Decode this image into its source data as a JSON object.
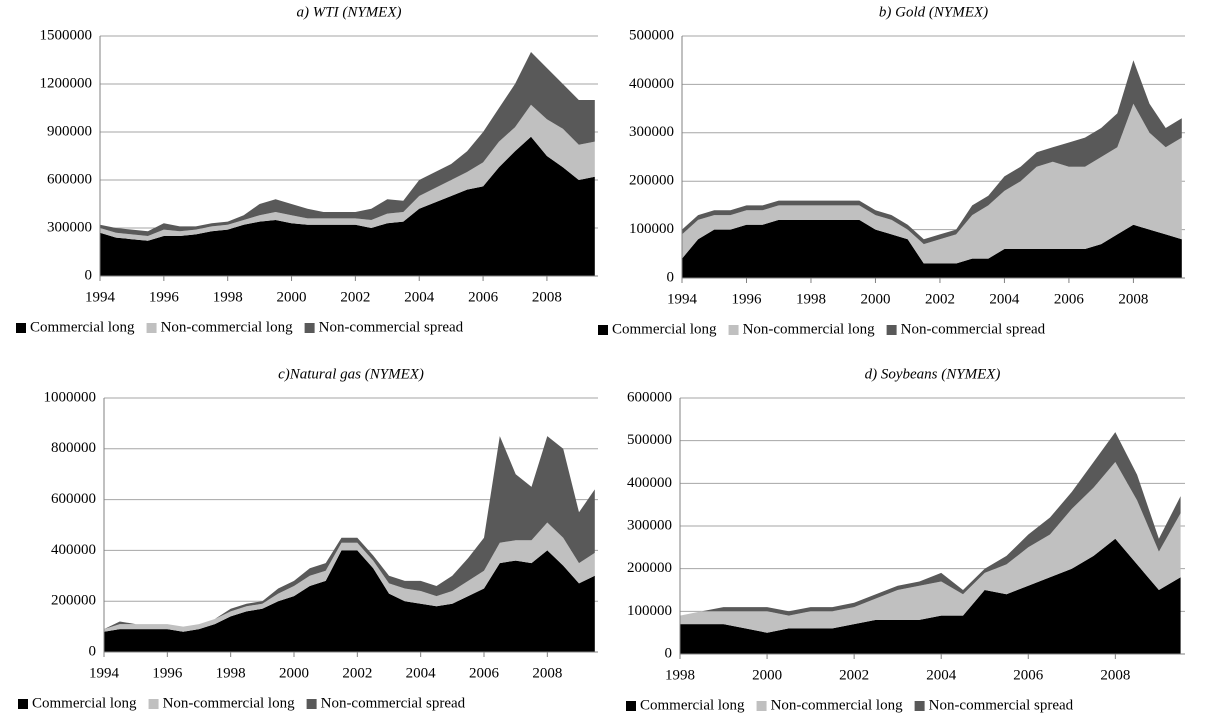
{
  "chart_data": [
    {
      "type": "area",
      "title": "a) WTI (NYMEX)",
      "x": [
        1994,
        1994.5,
        1995,
        1995.5,
        1996,
        1996.5,
        1997,
        1997.5,
        1998,
        1998.5,
        1999,
        1999.5,
        2000,
        2000.5,
        2001,
        2001.5,
        2002,
        2002.5,
        2003,
        2003.5,
        2004,
        2004.5,
        2005,
        2005.5,
        2006,
        2006.5,
        2007,
        2007.5,
        2008,
        2008.5,
        2009,
        2009.5
      ],
      "xlim": [
        1994,
        2009.6
      ],
      "xticks": [
        1994,
        1996,
        1998,
        2000,
        2002,
        2004,
        2006,
        2008
      ],
      "ylim": [
        0,
        1500000
      ],
      "yticks": [
        0,
        300000,
        600000,
        900000,
        1200000,
        1500000
      ],
      "grid": true,
      "series": [
        {
          "name": "Commercial long",
          "color": "#000000",
          "values": [
            270000,
            240000,
            230000,
            220000,
            250000,
            250000,
            260000,
            280000,
            290000,
            320000,
            340000,
            350000,
            330000,
            320000,
            320000,
            320000,
            320000,
            300000,
            330000,
            340000,
            420000,
            460000,
            500000,
            540000,
            560000,
            680000,
            780000,
            870000,
            750000,
            680000,
            600000,
            620000
          ]
        },
        {
          "name": "Non-commercial long",
          "color": "#c0c0c0",
          "values": [
            30000,
            30000,
            30000,
            30000,
            40000,
            30000,
            30000,
            30000,
            30000,
            30000,
            40000,
            50000,
            50000,
            40000,
            40000,
            40000,
            40000,
            50000,
            60000,
            60000,
            80000,
            90000,
            100000,
            110000,
            150000,
            160000,
            150000,
            200000,
            230000,
            240000,
            220000,
            220000
          ]
        },
        {
          "name": "Non-commercial spread",
          "color": "#595959",
          "values": [
            20000,
            30000,
            30000,
            30000,
            40000,
            30000,
            20000,
            20000,
            20000,
            30000,
            70000,
            80000,
            70000,
            60000,
            40000,
            40000,
            40000,
            70000,
            90000,
            70000,
            100000,
            100000,
            100000,
            130000,
            190000,
            210000,
            270000,
            330000,
            320000,
            280000,
            280000,
            260000
          ]
        }
      ]
    },
    {
      "type": "area",
      "title": "b) Gold (NYMEX)",
      "x": [
        1994,
        1994.5,
        1995,
        1995.5,
        1996,
        1996.5,
        1997,
        1997.5,
        1998,
        1998.5,
        1999,
        1999.5,
        2000,
        2000.5,
        2001,
        2001.5,
        2002,
        2002.5,
        2003,
        2003.5,
        2004,
        2004.5,
        2005,
        2005.5,
        2006,
        2006.5,
        2007,
        2007.5,
        2008,
        2008.5,
        2009,
        2009.5
      ],
      "xlim": [
        1994,
        2009.6
      ],
      "xticks": [
        1994,
        1996,
        1998,
        2000,
        2002,
        2004,
        2006,
        2008
      ],
      "ylim": [
        0,
        500000
      ],
      "yticks": [
        0,
        100000,
        200000,
        300000,
        400000,
        500000
      ],
      "grid": true,
      "series": [
        {
          "name": "Commercial long",
          "color": "#000000",
          "values": [
            40000,
            80000,
            100000,
            100000,
            110000,
            110000,
            120000,
            120000,
            120000,
            120000,
            120000,
            120000,
            100000,
            90000,
            80000,
            30000,
            30000,
            30000,
            40000,
            40000,
            60000,
            60000,
            60000,
            60000,
            60000,
            60000,
            70000,
            90000,
            110000,
            100000,
            90000,
            80000
          ]
        },
        {
          "name": "Non-commercial long",
          "color": "#c0c0c0",
          "values": [
            50000,
            40000,
            30000,
            30000,
            30000,
            30000,
            30000,
            30000,
            30000,
            30000,
            30000,
            30000,
            30000,
            30000,
            20000,
            40000,
            50000,
            60000,
            90000,
            110000,
            120000,
            140000,
            170000,
            180000,
            170000,
            170000,
            180000,
            180000,
            250000,
            200000,
            180000,
            210000
          ]
        },
        {
          "name": "Non-commercial spread",
          "color": "#595959",
          "values": [
            10000,
            10000,
            10000,
            10000,
            10000,
            10000,
            10000,
            10000,
            10000,
            10000,
            10000,
            10000,
            10000,
            10000,
            10000,
            10000,
            10000,
            10000,
            20000,
            20000,
            30000,
            30000,
            30000,
            30000,
            50000,
            60000,
            60000,
            70000,
            90000,
            60000,
            40000,
            40000
          ]
        }
      ]
    },
    {
      "type": "area",
      "title": "c)Natural gas (NYMEX)",
      "x": [
        1994,
        1994.5,
        1995,
        1995.5,
        1996,
        1996.5,
        1997,
        1997.5,
        1998,
        1998.5,
        1999,
        1999.5,
        2000,
        2000.5,
        2001,
        2001.5,
        2002,
        2002.5,
        2003,
        2003.5,
        2004,
        2004.5,
        2005,
        2005.5,
        2006,
        2006.5,
        2007,
        2007.5,
        2008,
        2008.5,
        2009,
        2009.5
      ],
      "xlim": [
        1994,
        2009.6
      ],
      "xticks": [
        1994,
        1996,
        1998,
        2000,
        2002,
        2004,
        2006,
        2008
      ],
      "ylim": [
        0,
        1000000
      ],
      "yticks": [
        0,
        200000,
        400000,
        600000,
        800000,
        1000000
      ],
      "grid": true,
      "series": [
        {
          "name": "Commercial long",
          "color": "#000000",
          "values": [
            80000,
            90000,
            90000,
            90000,
            90000,
            80000,
            90000,
            110000,
            140000,
            160000,
            170000,
            200000,
            220000,
            260000,
            280000,
            400000,
            400000,
            330000,
            230000,
            200000,
            190000,
            180000,
            190000,
            220000,
            250000,
            350000,
            360000,
            350000,
            400000,
            340000,
            270000,
            300000
          ]
        },
        {
          "name": "Non-commercial long",
          "color": "#c0c0c0",
          "values": [
            10000,
            20000,
            20000,
            20000,
            20000,
            20000,
            20000,
            20000,
            20000,
            20000,
            20000,
            30000,
            40000,
            40000,
            40000,
            30000,
            30000,
            30000,
            40000,
            50000,
            50000,
            40000,
            50000,
            60000,
            70000,
            80000,
            80000,
            90000,
            110000,
            110000,
            80000,
            90000
          ]
        },
        {
          "name": "Non-commercial spread",
          "color": "#595959",
          "values": [
            0,
            10000,
            0,
            0,
            0,
            0,
            0,
            0,
            10000,
            10000,
            10000,
            20000,
            20000,
            30000,
            30000,
            20000,
            20000,
            20000,
            30000,
            30000,
            40000,
            40000,
            60000,
            90000,
            130000,
            420000,
            260000,
            210000,
            340000,
            350000,
            200000,
            250000
          ]
        }
      ]
    },
    {
      "type": "area",
      "title": "d) Soybeans (NYMEX)",
      "x": [
        1998,
        1998.5,
        1999,
        1999.5,
        2000,
        2000.5,
        2001,
        2001.5,
        2002,
        2002.5,
        2003,
        2003.5,
        2004,
        2004.5,
        2005,
        2005.5,
        2006,
        2006.5,
        2007,
        2007.5,
        2008,
        2008.5,
        2009,
        2009.5
      ],
      "xlim": [
        1998,
        2009.6
      ],
      "xticks": [
        1998,
        2000,
        2002,
        2004,
        2006,
        2008
      ],
      "ylim": [
        0,
        600000
      ],
      "yticks": [
        0,
        100000,
        200000,
        300000,
        400000,
        500000,
        600000
      ],
      "grid": true,
      "series": [
        {
          "name": "Commercial long",
          "color": "#000000",
          "values": [
            70000,
            70000,
            70000,
            60000,
            50000,
            60000,
            60000,
            60000,
            70000,
            80000,
            80000,
            80000,
            90000,
            90000,
            150000,
            140000,
            160000,
            180000,
            200000,
            230000,
            270000,
            210000,
            150000,
            180000
          ]
        },
        {
          "name": "Non-commercial long",
          "color": "#c0c0c0",
          "values": [
            20000,
            30000,
            30000,
            40000,
            50000,
            30000,
            40000,
            40000,
            40000,
            50000,
            70000,
            80000,
            80000,
            50000,
            40000,
            70000,
            90000,
            100000,
            140000,
            160000,
            180000,
            150000,
            90000,
            150000
          ]
        },
        {
          "name": "Non-commercial spread",
          "color": "#595959",
          "values": [
            0,
            0,
            10000,
            10000,
            10000,
            10000,
            10000,
            10000,
            10000,
            10000,
            10000,
            10000,
            20000,
            10000,
            10000,
            20000,
            30000,
            40000,
            40000,
            60000,
            70000,
            60000,
            30000,
            40000
          ]
        }
      ]
    }
  ]
}
